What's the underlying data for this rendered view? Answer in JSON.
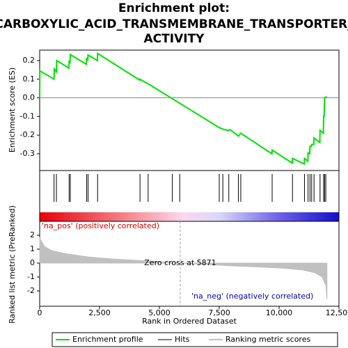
{
  "chart_data": [
    {
      "type": "line",
      "title": [
        "Enrichment plot:",
        "CARBOXYLIC_ACID_TRANSMEMBRANE_TRANSPORTER_",
        "ACTIVITY"
      ],
      "ylabel": "Enrichment score (ES)",
      "xlim": [
        0,
        12500
      ],
      "ylim": [
        -0.39,
        0.256
      ],
      "yticks": [
        0.2,
        0.1,
        {
          "value": 0,
          "label": "0.0"
        },
        -0.1,
        -0.2,
        -0.3
      ],
      "series": [
        {
          "name": "Enrichment profile",
          "color": "#00e000",
          "x": [
            0,
            5,
            600,
            610,
            700,
            710,
            1220,
            1230,
            1270,
            1280,
            1950,
            1960,
            2010,
            2020,
            2410,
            2420,
            4180,
            4190,
            4520,
            4530,
            4560,
            7500,
            7600,
            7700,
            7900,
            7950,
            8300,
            8400,
            9700,
            9710,
            10550,
            10560,
            11050,
            11060,
            11200,
            11210,
            11280,
            11290,
            11350,
            11360,
            11450,
            11460,
            11700,
            11710,
            11850,
            11860,
            11880,
            11900,
            12000
          ],
          "values": [
            0,
            0.145,
            0.1,
            0.155,
            0.14,
            0.2,
            0.16,
            0.195,
            0.19,
            0.232,
            0.18,
            0.21,
            0.205,
            0.23,
            0.2,
            0.238,
            0.095,
            0.1,
            0.075,
            0.075,
            0.073,
            -0.16,
            -0.165,
            -0.17,
            -0.175,
            -0.17,
            -0.205,
            -0.19,
            -0.3,
            -0.28,
            -0.35,
            -0.325,
            -0.355,
            -0.325,
            -0.34,
            -0.295,
            -0.3,
            -0.26,
            -0.26,
            -0.25,
            -0.25,
            -0.215,
            -0.24,
            -0.175,
            -0.19,
            -0.1,
            -0.1,
            0.0,
            0.005
          ]
        }
      ],
      "hits_name": "Hits",
      "hits": [
        0,
        600,
        700,
        1230,
        1280,
        1960,
        2020,
        2420,
        4190,
        4530,
        5540,
        5850,
        7500,
        7650,
        7900,
        8300,
        8400,
        9710,
        10560,
        11060,
        11210,
        11290,
        11360,
        11460,
        11710,
        11860,
        11900,
        11950
      ]
    },
    {
      "type": "area",
      "ylabel": "Ranked list metric (PreRanked)",
      "xlabel": "Rank in Ordered Dataset",
      "xlim": [
        0,
        12500
      ],
      "ylim": [
        -3.1,
        3
      ],
      "xticks": [
        0,
        {
          "value": 2500,
          "label": "2,500"
        },
        {
          "value": 5000,
          "label": "5,000"
        },
        {
          "value": 7500,
          "label": "7,500"
        },
        {
          "value": 10000,
          "label": "10,000"
        },
        {
          "value": 12500,
          "label": "12,500"
        }
      ],
      "yticks": [
        2,
        1,
        0,
        -1,
        -2
      ],
      "series": [
        {
          "name": "Ranking metric scores",
          "color": "#c0c0c0",
          "x": [
            0,
            200,
            500,
            1000,
            2000,
            3000,
            4000,
            5000,
            5871,
            7000,
            8000,
            9000,
            10000,
            10500,
            11000,
            11500,
            11800,
            11950,
            12000
          ],
          "values": [
            1.8,
            1.2,
            0.9,
            0.7,
            0.45,
            0.3,
            0.2,
            0.1,
            0,
            -0.1,
            -0.2,
            -0.27,
            -0.35,
            -0.42,
            -0.5,
            -0.7,
            -1.0,
            -1.6,
            -2.6
          ]
        }
      ],
      "zero_cross": 5871,
      "annotations": [
        "'na_pos' (positively correlated)",
        "Zero cross at 5871",
        "'na_neg' (negatively correlated)"
      ]
    }
  ]
}
